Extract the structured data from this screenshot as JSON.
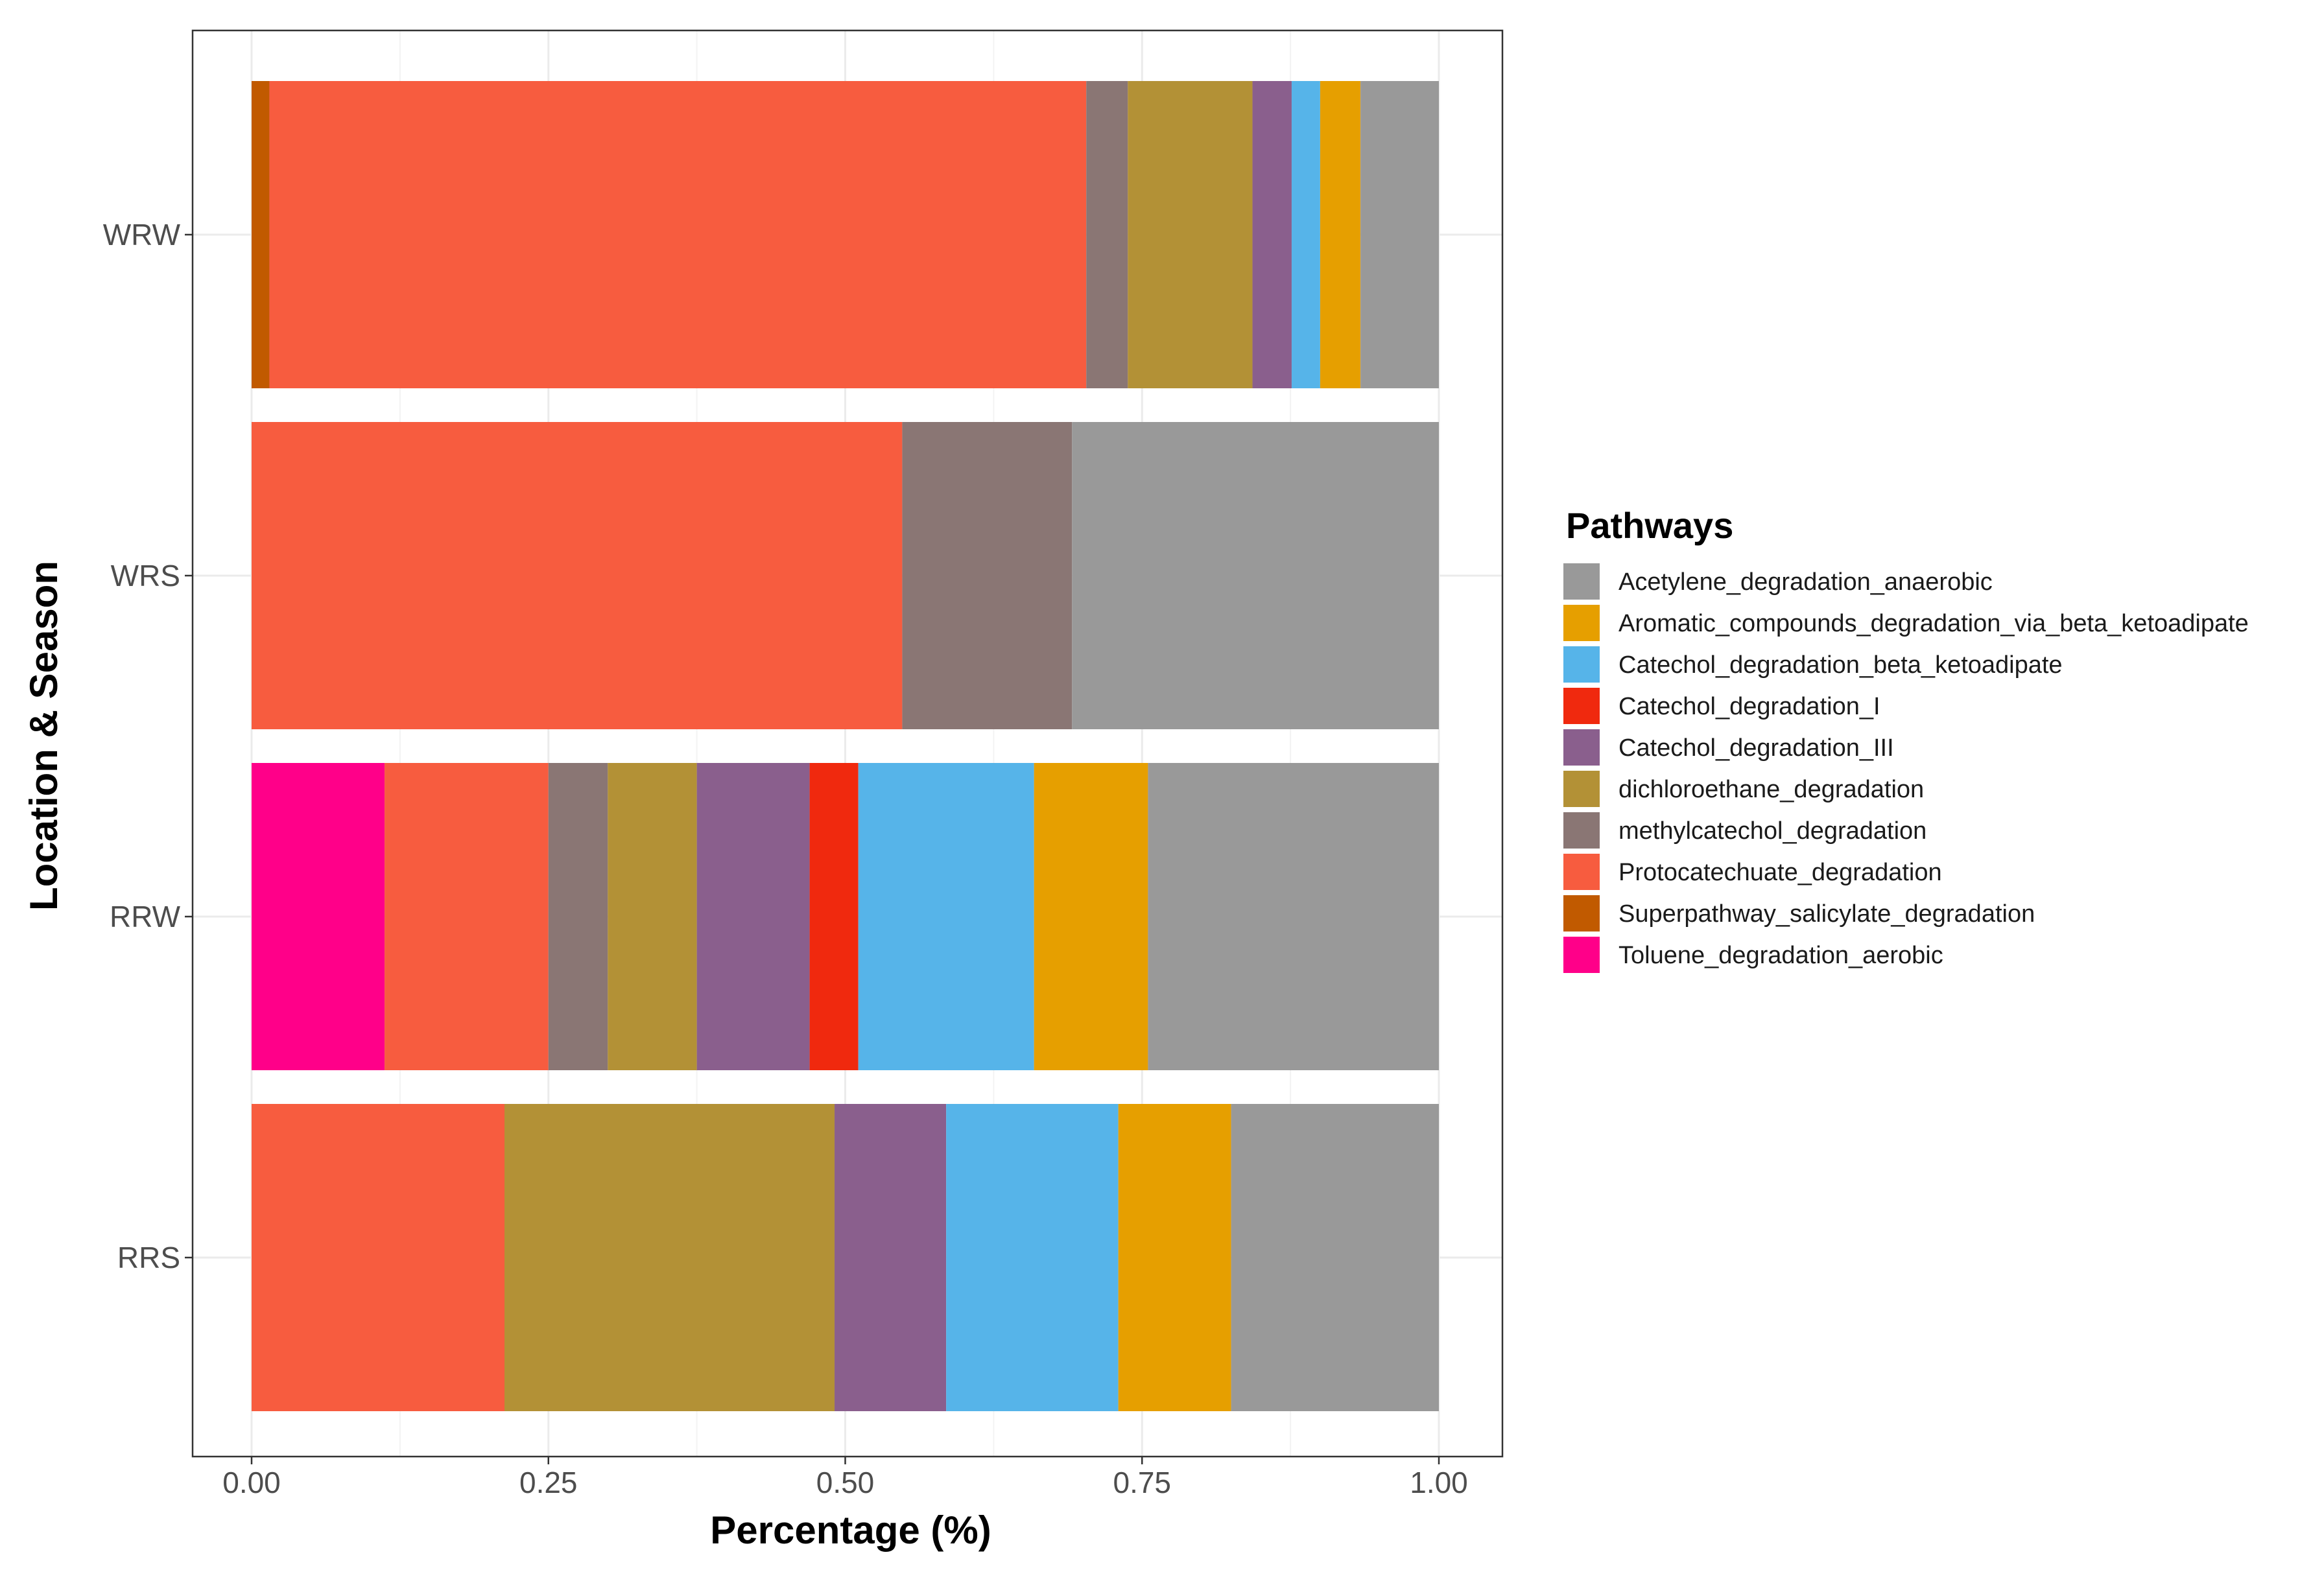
{
  "chart_data": {
    "type": "bar",
    "orientation": "horizontal",
    "stacked": true,
    "title": "",
    "xlabel": "Percentage (%)",
    "ylabel": "Location & Season",
    "xlim": [
      0,
      1
    ],
    "x_ticks": [
      "0.00",
      "0.25",
      "0.50",
      "0.75",
      "1.00"
    ],
    "x_tick_values": [
      0,
      0.25,
      0.5,
      0.75,
      1.0
    ],
    "grid": true,
    "legend_title": "Pathways",
    "legend_position": "right",
    "categories": [
      "WRW",
      "WRS",
      "RRW",
      "RRS"
    ],
    "series": [
      {
        "name": "Acetylene_degradation_anaerobic",
        "color": "#999999",
        "values": [
          0.066,
          0.309,
          0.245,
          0.175
        ]
      },
      {
        "name": "Aromatic_compounds_degradation_via_beta_ketoadipate",
        "color": "#E69F00",
        "values": [
          0.034,
          0,
          0.096,
          0.095
        ]
      },
      {
        "name": "Catechol_degradation_beta_ketoadipate",
        "color": "#56B4E9",
        "values": [
          0.024,
          0,
          0.148,
          0.145
        ]
      },
      {
        "name": "Catechol_degradation_I",
        "color": "#F0290E",
        "values": [
          0,
          0,
          0.041,
          0
        ]
      },
      {
        "name": "Catechol_degradation_III",
        "color": "#8A5F8D",
        "values": [
          0.033,
          0,
          0.095,
          0.094
        ]
      },
      {
        "name": "dichloroethane_degradation",
        "color": "#B39136",
        "values": [
          0.105,
          0,
          0.075,
          0.278
        ]
      },
      {
        "name": "methylcatechol_degradation",
        "color": "#8A7674",
        "values": [
          0.035,
          0.143,
          0.05,
          0
        ]
      },
      {
        "name": "Protocatechuate_degradation",
        "color": "#F75C3F",
        "values": [
          0.688,
          0.548,
          0.138,
          0.213
        ]
      },
      {
        "name": "Superpathway_salicylate_degradation",
        "color": "#C15A00",
        "values": [
          0.015,
          0,
          0,
          0
        ]
      },
      {
        "name": "Toluene_degradation_aerobic",
        "color": "#FF0089",
        "values": [
          0,
          0,
          0.112,
          0
        ]
      }
    ],
    "stack_order": [
      "Toluene_degradation_aerobic",
      "Superpathway_salicylate_degradation",
      "Protocatechuate_degradation",
      "methylcatechol_degradation",
      "dichloroethane_degradation",
      "Catechol_degradation_III",
      "Catechol_degradation_I",
      "Catechol_degradation_beta_ketoadipate",
      "Aromatic_compounds_degradation_via_beta_ketoadipate",
      "Acetylene_degradation_anaerobic"
    ]
  }
}
